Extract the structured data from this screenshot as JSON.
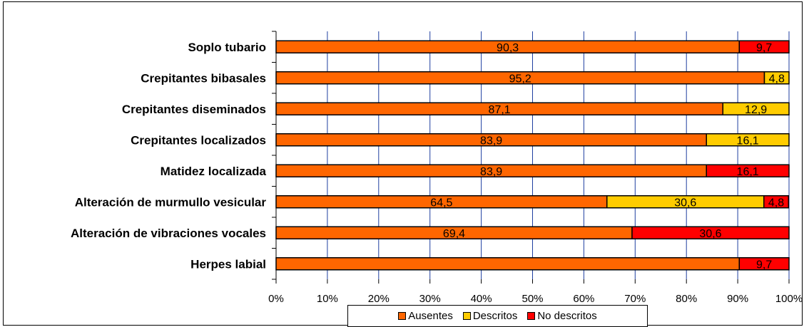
{
  "chart_data": {
    "type": "bar",
    "orientation": "horizontal",
    "stacked": "percent",
    "categories": [
      "Soplo tubario",
      "Crepitantes bibasales",
      "Crepitantes diseminados",
      "Crepitantes localizados",
      "Matidez localizada",
      "Alteración de murmullo vesicular",
      "Alteración de vibraciones vocales",
      "Herpes labial"
    ],
    "series": [
      {
        "name": "Ausentes",
        "color": "#FF6600",
        "values": [
          90.3,
          95.2,
          87.1,
          83.9,
          83.9,
          64.5,
          69.4,
          90.3
        ]
      },
      {
        "name": "Descritos",
        "color": "#FFCC00",
        "values": [
          0,
          4.8,
          12.9,
          16.1,
          0,
          30.6,
          0,
          0
        ]
      },
      {
        "name": "No descritos",
        "color": "#FF0000",
        "values": [
          9.7,
          0,
          0,
          0,
          16.1,
          4.8,
          30.6,
          9.7
        ]
      }
    ],
    "data_labels": [
      [
        "90,3",
        "",
        "9,7"
      ],
      [
        "95,2",
        "4,8",
        ""
      ],
      [
        "87,1",
        "12,9",
        ""
      ],
      [
        "83,9",
        "16,1",
        ""
      ],
      [
        "83,9",
        "",
        "16,1"
      ],
      [
        "64,5",
        "30,6",
        "4,8"
      ],
      [
        "69,4",
        "",
        "30,6"
      ],
      [
        "",
        "",
        "9,7"
      ]
    ],
    "xticks": [
      "0%",
      "10%",
      "20%",
      "30%",
      "40%",
      "50%",
      "60%",
      "70%",
      "80%",
      "90%",
      "100%"
    ],
    "xlim": [
      0,
      100
    ],
    "grid": "vertical",
    "gridline_color": "#1F3FA0",
    "legend_position": "bottom"
  }
}
